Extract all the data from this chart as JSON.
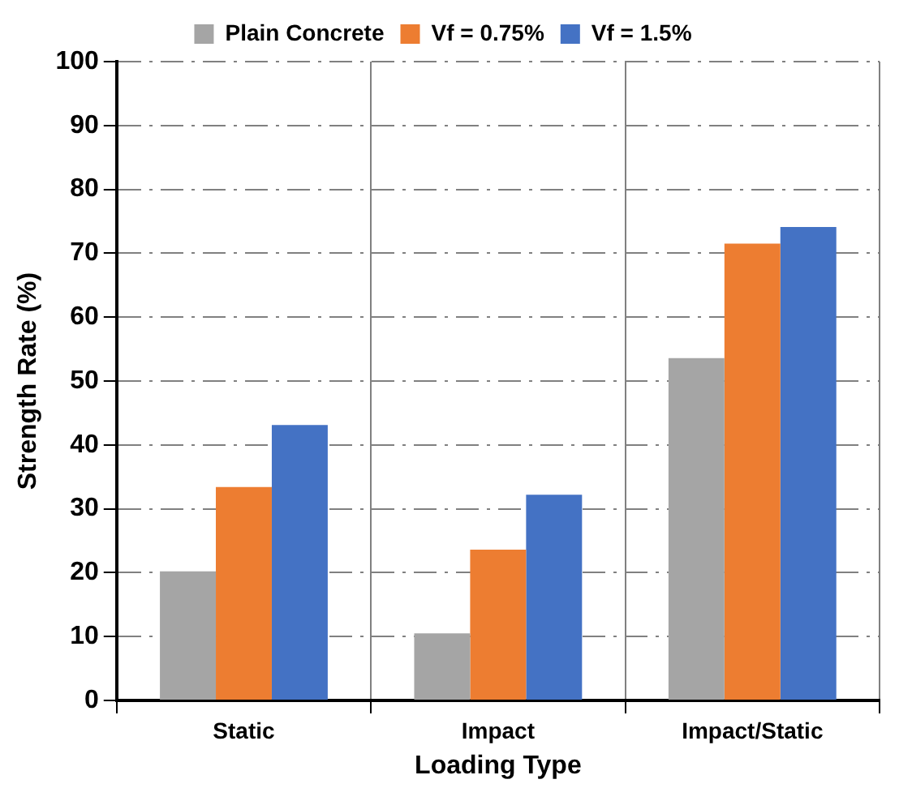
{
  "chart_data": {
    "type": "bar",
    "xlabel": "Loading Type",
    "ylabel": "Strength Rate (%)",
    "categories": [
      "Static",
      "Impact",
      "Impact/Static"
    ],
    "series": [
      {
        "name": "Plain Concrete",
        "color": "#a5a5a5",
        "values": [
          20.2,
          10.5,
          53.6
        ]
      },
      {
        "name": "Vf = 0.75%",
        "color": "#ed7d31",
        "values": [
          33.4,
          23.6,
          71.5
        ]
      },
      {
        "name": "Vf = 1.5%",
        "color": "#4472c4",
        "values": [
          43.1,
          32.2,
          74.1
        ]
      }
    ],
    "ylim": [
      0,
      100
    ],
    "yticks": [
      0,
      10,
      20,
      30,
      40,
      50,
      60,
      70,
      80,
      90,
      100
    ],
    "grid": true,
    "legend": "top"
  }
}
